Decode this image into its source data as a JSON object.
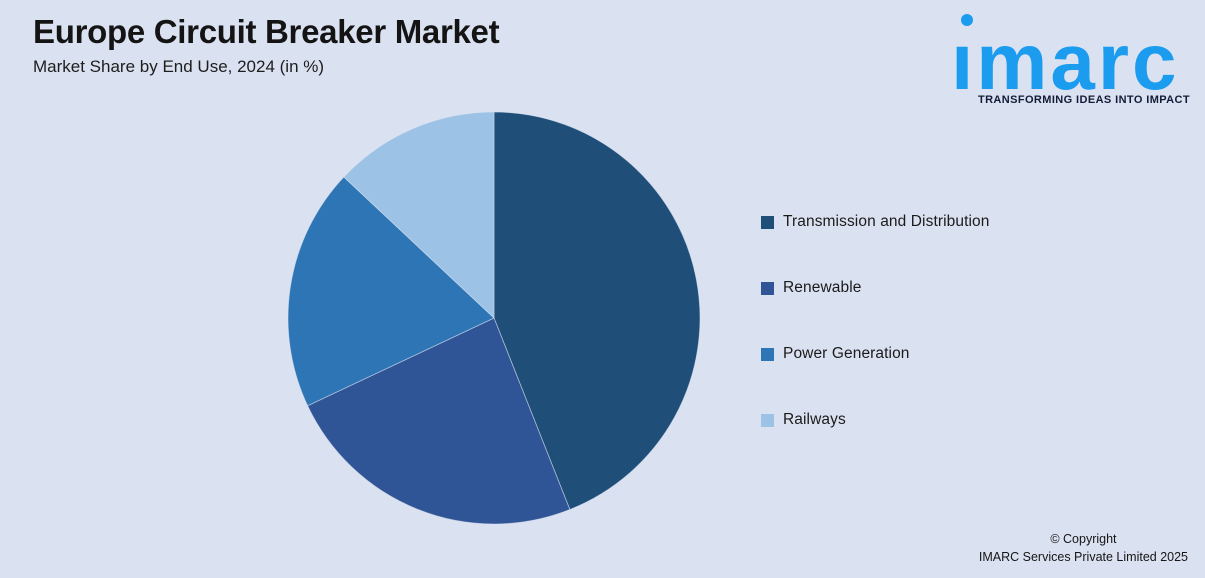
{
  "page": {
    "title": "Europe Circuit Breaker Market",
    "subtitle": "Market Share by End Use, 2024 (in %)"
  },
  "logo": {
    "brand": "imarc",
    "wordmark_display": "ımarc",
    "tagline": "TRANSFORMING IDEAS INTO IMPACT",
    "brand_color": "#1B9CEE"
  },
  "legend": {
    "items": [
      {
        "label": "Transmission and Distribution",
        "color": "#1F4E79"
      },
      {
        "label": "Renewable",
        "color": "#2F5596"
      },
      {
        "label": "Power Generation",
        "color": "#2E75B5"
      },
      {
        "label": "Railways",
        "color": "#9CC2E5"
      }
    ]
  },
  "footer": {
    "line1": "© Copyright",
    "line2": "IMARC Services Private Limited 2025"
  },
  "chart_data": {
    "type": "pie",
    "title": "Europe Circuit Breaker Market",
    "subtitle": "Market Share by End Use, 2024 (in %)",
    "unit": "%",
    "categories": [
      "Transmission and Distribution",
      "Renewable",
      "Power Generation",
      "Railways"
    ],
    "values": [
      44,
      24,
      19,
      13
    ],
    "colors": [
      "#1F4E79",
      "#2F5596",
      "#2E75B5",
      "#9CC2E5"
    ],
    "start_angle": "12 o'clock",
    "direction": "clockwise",
    "legend_position": "right",
    "data_labels": false,
    "background": "#DAE1F0"
  }
}
